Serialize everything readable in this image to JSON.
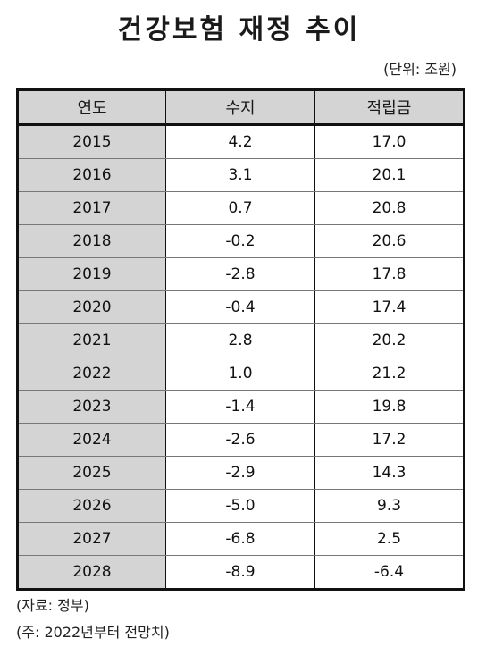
{
  "title": "건강보험 재정 추이",
  "unit": "(단위: 조원)",
  "table": {
    "headers": [
      "연도",
      "수지",
      "적립금"
    ],
    "rows": [
      {
        "year": "2015",
        "balance": "4.2",
        "reserve": "17.0"
      },
      {
        "year": "2016",
        "balance": "3.1",
        "reserve": "20.1"
      },
      {
        "year": "2017",
        "balance": "0.7",
        "reserve": "20.8"
      },
      {
        "year": "2018",
        "balance": "-0.2",
        "reserve": "20.6"
      },
      {
        "year": "2019",
        "balance": "-2.8",
        "reserve": "17.8"
      },
      {
        "year": "2020",
        "balance": "-0.4",
        "reserve": "17.4"
      },
      {
        "year": "2021",
        "balance": "2.8",
        "reserve": "20.2"
      },
      {
        "year": "2022",
        "balance": "1.0",
        "reserve": "21.2"
      },
      {
        "year": "2023",
        "balance": "-1.4",
        "reserve": "19.8"
      },
      {
        "year": "2024",
        "balance": "-2.6",
        "reserve": "17.2"
      },
      {
        "year": "2025",
        "balance": "-2.9",
        "reserve": "14.3"
      },
      {
        "year": "2026",
        "balance": "-5.0",
        "reserve": "9.3"
      },
      {
        "year": "2027",
        "balance": "-6.8",
        "reserve": "2.5"
      },
      {
        "year": "2028",
        "balance": "-8.9",
        "reserve": "-6.4"
      }
    ]
  },
  "notes": {
    "source": "(자료: 정부)",
    "remark": "(주: 2022년부터 전망치)"
  },
  "colors": {
    "header_bg": "#d4d4d4",
    "border": "#111111"
  }
}
